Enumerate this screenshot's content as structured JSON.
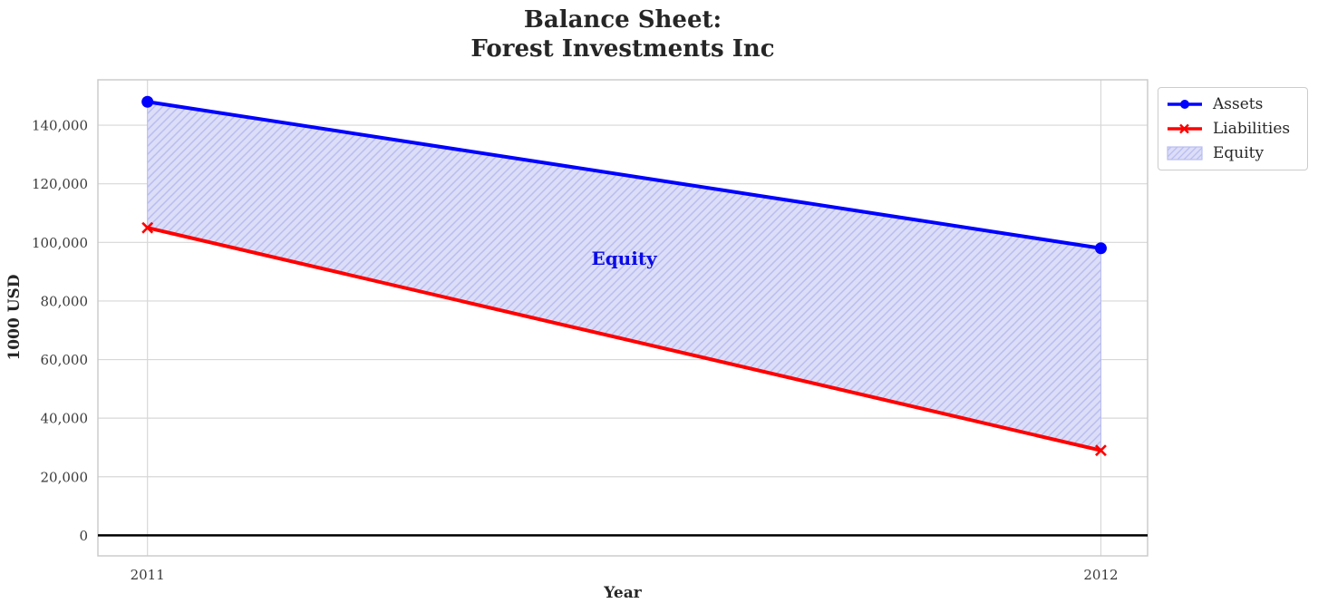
{
  "title": {
    "line1": "Balance Sheet:",
    "line2": "Forest Investments Inc"
  },
  "colors": {
    "assets": "#0000ff",
    "liabilities": "#ff0000",
    "equity_fill": "#dcddf7",
    "equity_hatch": "#b9bdf0",
    "annotation": "#0a0ae8"
  },
  "chart_data": {
    "type": "line",
    "title": "Balance Sheet: Forest Investments Inc",
    "xlabel": "Year",
    "ylabel": "1000 USD",
    "x": [
      2011,
      2012
    ],
    "series": [
      {
        "name": "Assets",
        "values": [
          148000,
          98000
        ],
        "color": "#0000ff",
        "marker": "circle"
      },
      {
        "name": "Liabilities",
        "values": [
          105000,
          29000
        ],
        "color": "#ff0000",
        "marker": "x"
      }
    ],
    "fill_between": {
      "label": "Equity",
      "upper": "Assets",
      "lower": "Liabilities",
      "values": [
        43000,
        69000
      ],
      "hatch": "///"
    },
    "annotation": {
      "text": "Equity",
      "x": 2011.5,
      "y": 94500
    },
    "x_ticks": {
      "values": [
        2011,
        2012
      ],
      "labels": [
        "2011",
        "2012"
      ]
    },
    "y_ticks": {
      "values": [
        0,
        20000,
        40000,
        60000,
        80000,
        100000,
        120000,
        140000
      ],
      "labels": [
        "0",
        "20,000",
        "40,000",
        "60,000",
        "80,000",
        "100,000",
        "120,000",
        "140,000"
      ]
    },
    "xlim": [
      2010.948,
      2012.049
    ],
    "ylim": [
      -7000,
      155500
    ],
    "grid": true,
    "zero_line": true,
    "legend": {
      "position": "upper right",
      "items": [
        "Assets",
        "Liabilities",
        "Equity"
      ]
    }
  }
}
